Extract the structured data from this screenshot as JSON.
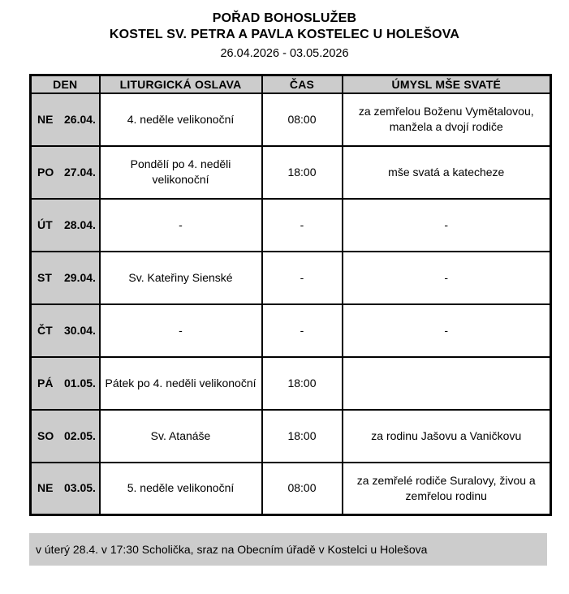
{
  "header": {
    "title": "POŘAD BOHOSLUŽEB",
    "subtitle": "KOSTEL SV. PETRA A PAVLA KOSTELEC U HOLEŠOVA",
    "date_range": "26.04.2026 - 03.05.2026"
  },
  "table": {
    "columns": [
      "DEN",
      "LITURGICKÁ OSLAVA",
      "ČAS",
      "ÚMYSL MŠE SVATÉ"
    ],
    "rows": [
      {
        "day": "NE",
        "date": "26.04.",
        "celebration": "4. neděle velikonoční",
        "time": "08:00",
        "intention": "za zemřelou Boženu Vymětalovou, manžela a dvojí rodiče"
      },
      {
        "day": "PO",
        "date": "27.04.",
        "celebration": "Pondělí po 4. neděli velikonoční",
        "time": "18:00",
        "intention": "mše svatá a katecheze"
      },
      {
        "day": "ÚT",
        "date": "28.04.",
        "celebration": "-",
        "time": "-",
        "intention": "-"
      },
      {
        "day": "ST",
        "date": "29.04.",
        "celebration": "Sv. Kateřiny Sienské",
        "time": "-",
        "intention": "-"
      },
      {
        "day": "ČT",
        "date": "30.04.",
        "celebration": "-",
        "time": "-",
        "intention": "-"
      },
      {
        "day": "PÁ",
        "date": "01.05.",
        "celebration": "Pátek po 4. neděli velikonoční",
        "time": "18:00",
        "intention": ""
      },
      {
        "day": "SO",
        "date": "02.05.",
        "celebration": "Sv. Atanáše",
        "time": "18:00",
        "intention": "za rodinu Jašovu a Vaničkovu"
      },
      {
        "day": "NE",
        "date": "03.05.",
        "celebration": "5. neděle velikonoční",
        "time": "08:00",
        "intention": "za zemřelé rodiče Suralovy, živou a zemřelou rodinu"
      }
    ]
  },
  "footer": {
    "note": "v úterý 28.4. v 17:30 Scholička, sraz na Obecním úřadě v Kostelci u Holešova"
  },
  "colors": {
    "cell_grey": "#cccccc",
    "border": "#000000",
    "text": "#000000",
    "background": "#ffffff"
  }
}
